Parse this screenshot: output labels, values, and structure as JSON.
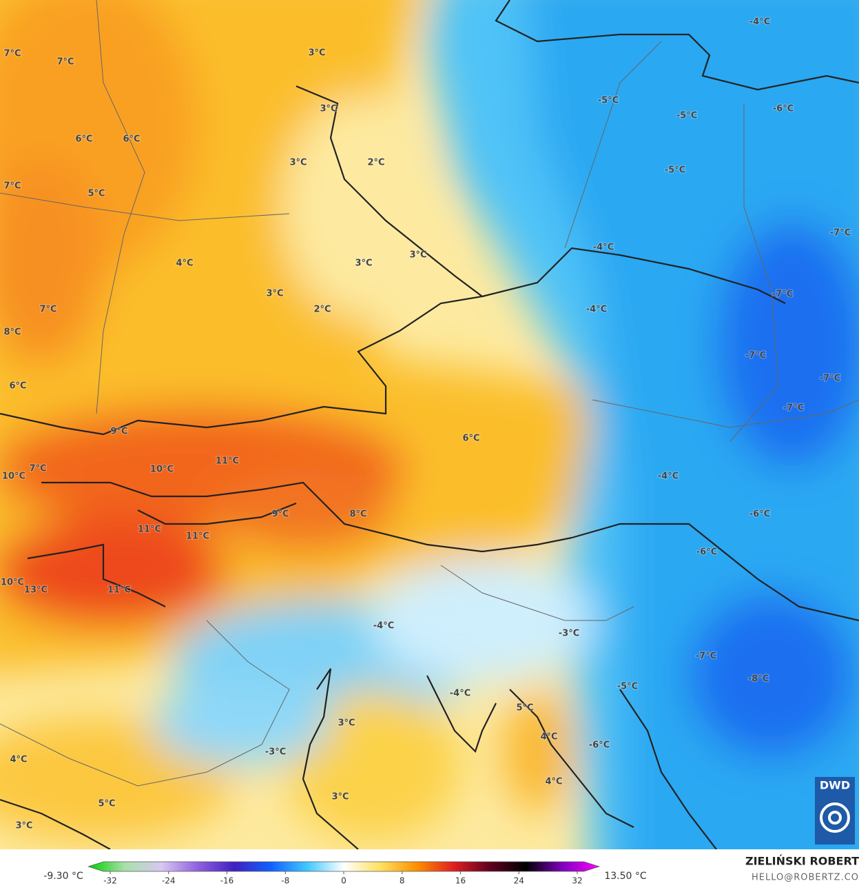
{
  "map": {
    "labels": [
      "7°C",
      "7°C",
      "3°C",
      "3°C",
      "6°C",
      "6°C",
      "3°C",
      "2°C",
      "7°C",
      "5°C",
      "4°C",
      "3°C",
      "3°C",
      "3°C",
      "2°C",
      "7°C",
      "8°C",
      "6°C",
      "9°C",
      "6°C",
      "7°C",
      "10°C",
      "10°C",
      "11°C",
      "9°C",
      "8°C",
      "11°C",
      "11°C",
      "10°C",
      "13°C",
      "11°C",
      "-4°C",
      "-5°C",
      "-5°C",
      "-6°C",
      "-5°C",
      "-4°C",
      "-7°C",
      "-4°C",
      "-7°C",
      "-7°C",
      "-7°C",
      "-7°C",
      "-4°C",
      "-6°C",
      "-6°C",
      "-4°C",
      "-3°C",
      "-7°C",
      "-8°C",
      "-5°C",
      "-4°C",
      "5°C",
      "3°C",
      "4°C",
      "-6°C",
      "-3°C",
      "4°C",
      "4°C",
      "3°C",
      "5°C",
      "3°C"
    ]
  },
  "colorbar": {
    "min_label": "-9.30 °C",
    "max_label": "13.50 °C",
    "range": [
      -35,
      35
    ],
    "ticks": [
      -32,
      -24,
      -16,
      -8,
      0,
      8,
      16,
      24,
      32
    ],
    "colors": [
      "#00d000",
      "#a8e0a8",
      "#d8c8f0",
      "#9060e0",
      "#4020c0",
      "#1060ff",
      "#40c8ff",
      "#ffffff",
      "#ffe060",
      "#ff9000",
      "#e02020",
      "#600020",
      "#000000",
      "#8000c0",
      "#ff00ff"
    ]
  },
  "credit": {
    "name": "ZIELIŃSKI ROBERT",
    "email": "HELLO@ROBERTZ.CO"
  },
  "logo": "DWD"
}
